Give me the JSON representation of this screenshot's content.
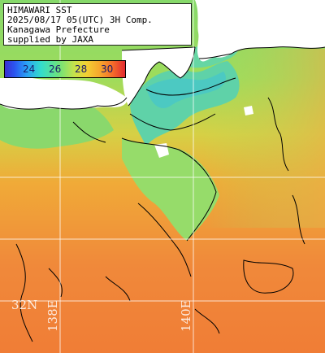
{
  "title_lines": [
    "HIMAWARI SST",
    "2025/08/17 05(UTC) 3H Comp.",
    "Kanagawa Prefecture",
    "supplied by JAXA"
  ],
  "color_scale": {
    "labels": [
      "24",
      "26",
      "28",
      "30"
    ],
    "colors": [
      "#3a2fd0",
      "#2aa0f5",
      "#33dccc",
      "#6fe27a",
      "#c8e24a",
      "#f2d033",
      "#f7a22c",
      "#f46a2a",
      "#e22a30"
    ]
  },
  "grid_labels": {
    "lat": "32N",
    "lon_west": "138E",
    "lon_east": "140E"
  },
  "palette": {
    "land": "#ffffff",
    "warm_sea": "#f08a35",
    "mid_sea": "#b8e060",
    "cool_sea": "#50d2b0",
    "coast_line": "#000000",
    "grid_line": "#ffffff"
  }
}
